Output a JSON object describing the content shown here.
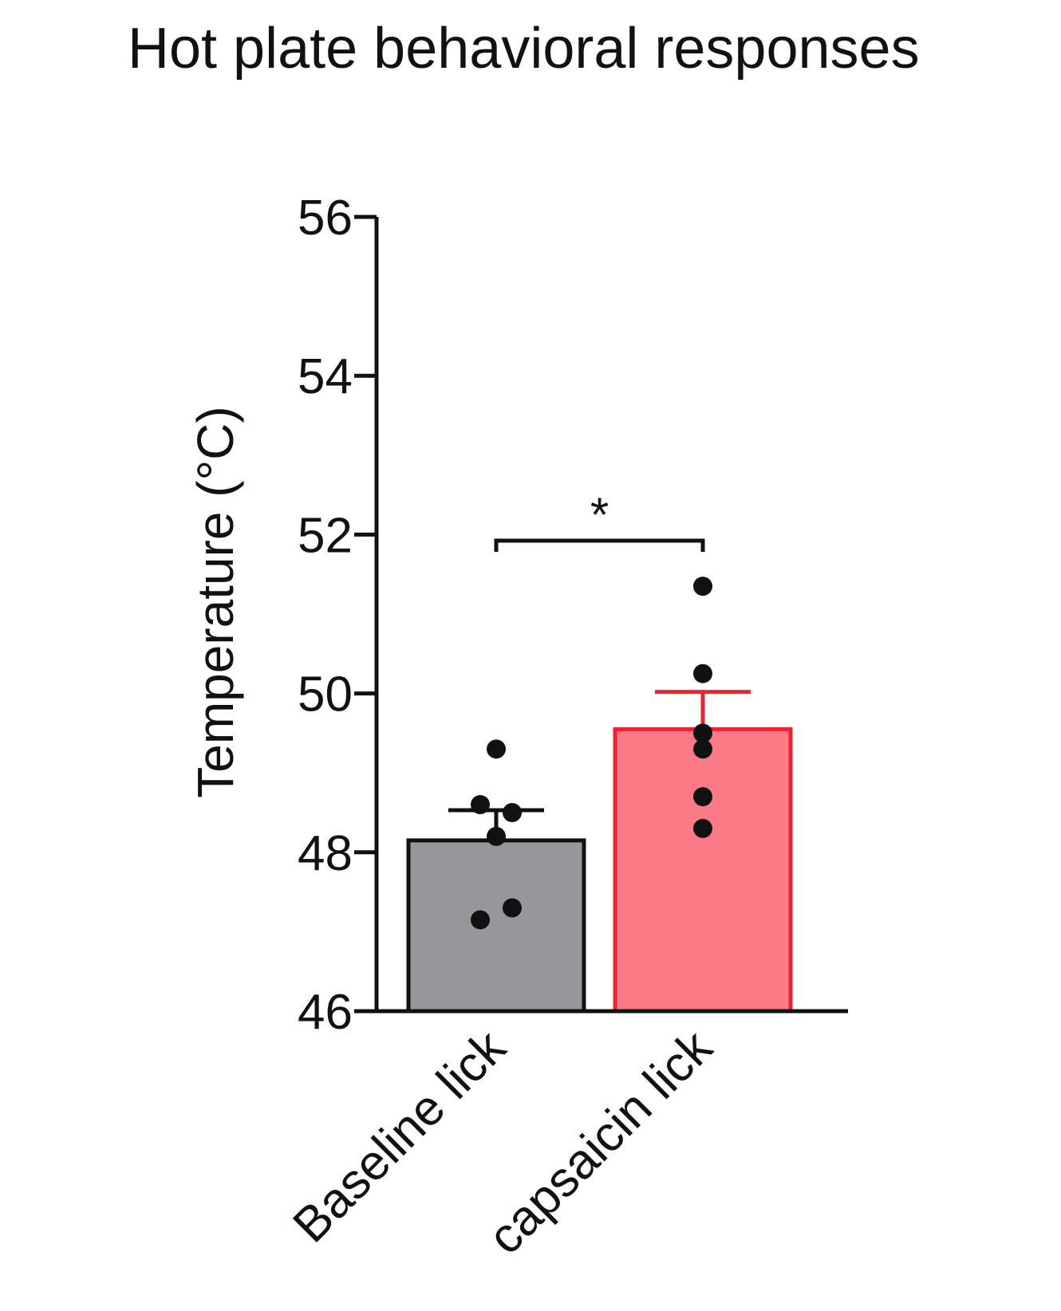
{
  "chart_data": {
    "type": "bar",
    "title": "Hot plate behavioral responses",
    "xlabel": "",
    "ylabel": "Temperature (°C)",
    "ylim": [
      46,
      56
    ],
    "yticks": [
      46,
      48,
      50,
      52,
      54,
      56
    ],
    "ytick_labels": [
      "46",
      "48",
      "50",
      "52",
      "54",
      "56"
    ],
    "categories": [
      "Baseline lick",
      "capsaicin lick"
    ],
    "values": [
      48.15,
      49.55
    ],
    "error": [
      0.38,
      0.47
    ],
    "points": [
      [
        49.3,
        48.6,
        48.5,
        48.2,
        47.3,
        47.15
      ],
      [
        51.35,
        50.25,
        49.5,
        49.3,
        48.7,
        48.3
      ]
    ],
    "bar_fill": [
      "#97969b",
      "#fa7a85"
    ],
    "bar_edge": [
      "#111111",
      "#ee2330"
    ],
    "significance": {
      "between": [
        0,
        1
      ],
      "label": "*"
    },
    "grid": false,
    "legend": "none"
  }
}
